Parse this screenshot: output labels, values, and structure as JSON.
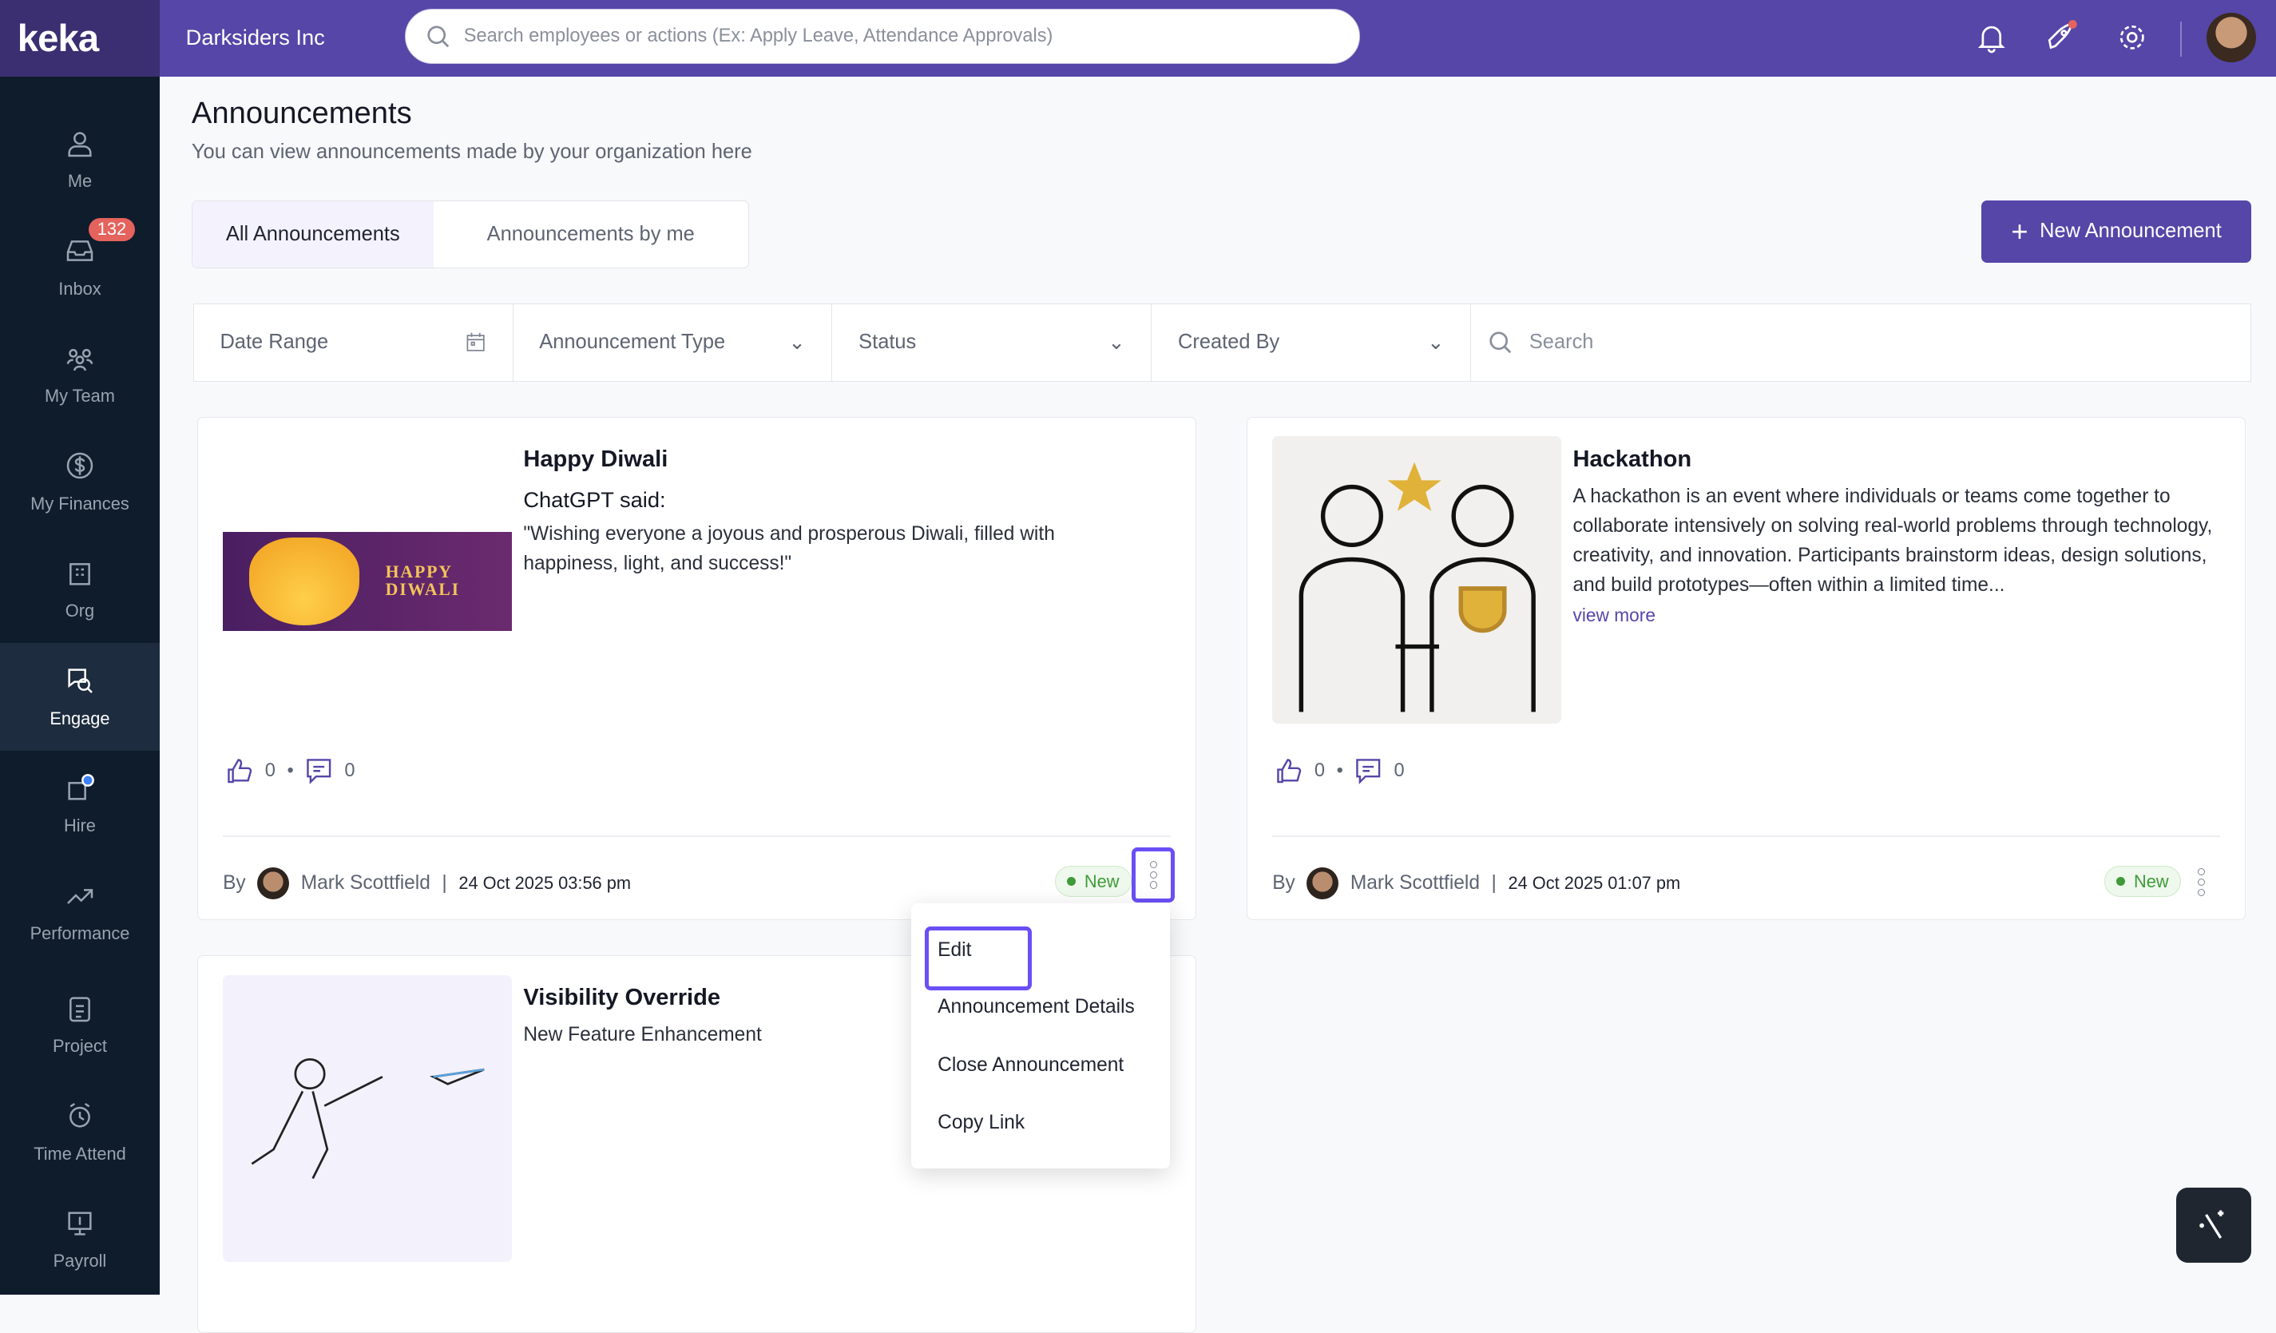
{
  "header": {
    "logo": "keka",
    "company": "Darksiders Inc",
    "search_placeholder": "Search employees or actions (Ex: Apply Leave, Attendance Approvals)",
    "icons": [
      "bell-icon",
      "rocket-icon",
      "gear-icon"
    ]
  },
  "sidebar": {
    "items": [
      {
        "label": "Me",
        "icon": "person-icon"
      },
      {
        "label": "Inbox",
        "icon": "inbox-icon",
        "badge": "132"
      },
      {
        "label": "My Team",
        "icon": "team-icon"
      },
      {
        "label": "My Finances",
        "icon": "dollar-icon"
      },
      {
        "label": "Org",
        "icon": "org-icon"
      },
      {
        "label": "Engage",
        "icon": "engage-icon",
        "active": true
      },
      {
        "label": "Hire",
        "icon": "hire-icon"
      },
      {
        "label": "Performance",
        "icon": "trend-icon"
      },
      {
        "label": "Project",
        "icon": "clipboard-icon"
      },
      {
        "label": "Time Attend",
        "icon": "clock-icon"
      },
      {
        "label": "Payroll",
        "icon": "payroll-icon"
      }
    ]
  },
  "page": {
    "title": "Announcements",
    "subtitle": "You can view announcements made by your organization here"
  },
  "tabs": [
    {
      "label": "All Announcements",
      "active": true
    },
    {
      "label": "Announcements by me"
    }
  ],
  "new_button": "New Announcement",
  "filters": {
    "date_range": "Date Range",
    "type": "Announcement Type",
    "status": "Status",
    "created_by": "Created By",
    "search_placeholder": "Search"
  },
  "cards": [
    {
      "title": "Happy Diwali",
      "subtitle": "ChatGPT said:",
      "body": "\"Wishing everyone a joyous and prosperous Diwali, filled with happiness, light, and success!\"",
      "image_text": "HAPPY DIWALI",
      "likes": "0",
      "comments": "0",
      "by": "By",
      "author": "Mark Scottfield",
      "date": "24 Oct 2025 03:56 pm",
      "status": "New"
    },
    {
      "title": "Hackathon",
      "body": "A hackathon is an event where individuals or teams come together to collaborate intensively on solving real-world problems through technology, creativity, and innovation. Participants brainstorm ideas, design solutions, and build prototypes—often within a limited time...",
      "view_more": "view more",
      "likes": "0",
      "comments": "0",
      "by": "By",
      "author": "Mark Scottfield",
      "date": "24 Oct 2025 01:07 pm",
      "status": "New"
    },
    {
      "title": "Visibility Override",
      "subtitle": "New Feature Enhancement"
    }
  ],
  "menu": {
    "items": [
      "Edit",
      "Announcement Details",
      "Close Announcement",
      "Copy Link"
    ]
  },
  "colors": {
    "brand": "#5546a8",
    "sidebar": "#0f1c2b",
    "highlight": "#6a4ff5",
    "badge": "#e5635d",
    "status_new": "#3f9a3a"
  }
}
